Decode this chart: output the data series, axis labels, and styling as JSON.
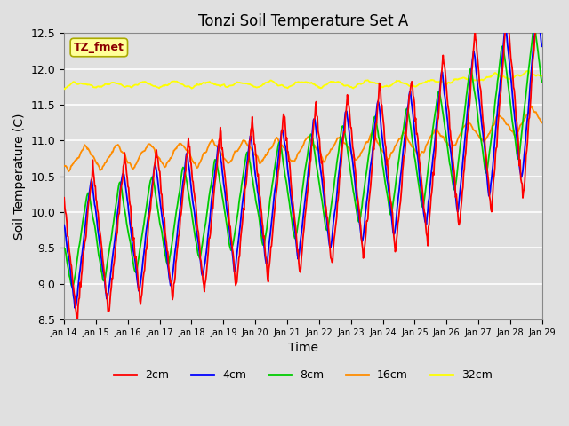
{
  "title": "Tonzi Soil Temperature Set A",
  "xlabel": "Time",
  "ylabel": "Soil Temperature (C)",
  "ylim": [
    8.5,
    12.5
  ],
  "annotation_text": "TZ_fmet",
  "annotation_color": "#8B0000",
  "annotation_bg": "#FFFF99",
  "annotation_border": "#AAAA00",
  "line_colors": {
    "2cm": "#FF0000",
    "4cm": "#0000FF",
    "8cm": "#00CC00",
    "16cm": "#FF8C00",
    "32cm": "#FFFF00"
  },
  "bg_color": "#E0E0E0",
  "grid_color": "#FFFFFF",
  "tick_labels": [
    "Jan 14",
    "Jan 15",
    "Jan 16",
    "Jan 17",
    "Jan 18",
    "Jan 19",
    "Jan 20",
    "Jan 21",
    "Jan 22",
    "Jan 23",
    "Jan 24",
    "Jan 25",
    "Jan 26",
    "Jan 27",
    "Jan 28",
    "Jan 29"
  ],
  "yticks": [
    8.5,
    9.0,
    9.5,
    10.0,
    10.5,
    11.0,
    11.5,
    12.0,
    12.5
  ]
}
